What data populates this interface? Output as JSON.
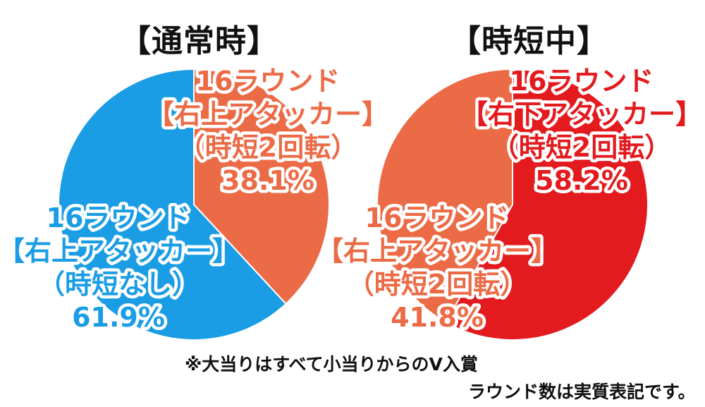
{
  "chart_data": [
    {
      "type": "pie",
      "title": "【通常時】",
      "slices": [
        {
          "lines": [
            "16ラウンド",
            "【右上アタッカー】",
            "（時短2回転）",
            "38.1%"
          ],
          "value": 38.1,
          "color": "#ec6b47",
          "text_color": "#ec6b47"
        },
        {
          "lines": [
            "16ラウンド",
            "【右上アタッカー】",
            "（時短なし）",
            "61.9%"
          ],
          "value": 61.9,
          "color": "#1a9de4",
          "text_color": "#1a9de4"
        }
      ]
    },
    {
      "type": "pie",
      "title": "【時短中】",
      "slices": [
        {
          "lines": [
            "16ラウンド",
            "【右下アタッカー】",
            "（時短2回転）",
            "58.2%"
          ],
          "value": 58.2,
          "color": "#e31a1e",
          "text_color": "#e31a1e"
        },
        {
          "lines": [
            "16ラウンド",
            "【右上アタッカー】",
            "（時短2回転）",
            "41.8%"
          ],
          "value": 41.8,
          "color": "#ec6b47",
          "text_color": "#ec6b47"
        }
      ]
    }
  ],
  "notes": {
    "line1": "※大当りはすべて小当りからのV入賞",
    "line2": "ラウンド数は実質表記です。"
  }
}
